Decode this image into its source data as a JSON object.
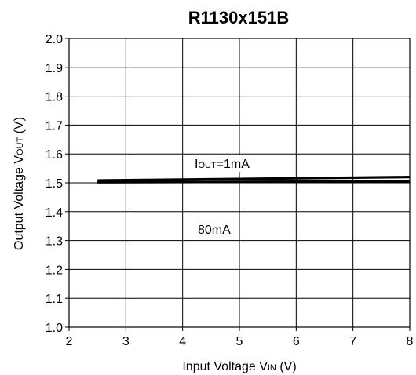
{
  "chart_data": {
    "type": "line",
    "title": "R1130x151B",
    "xlabel": {
      "main": "Input Voltage V",
      "sub": "IN",
      "unit": " (V)"
    },
    "ylabel": {
      "main": "Output Voltage V",
      "sub": "OUT",
      "unit": " (V)"
    },
    "xlim": [
      2,
      8
    ],
    "ylim": [
      1.0,
      2.0
    ],
    "x_ticks": [
      "2",
      "3",
      "4",
      "5",
      "6",
      "7",
      "8"
    ],
    "y_ticks": [
      "1.0",
      "1.1",
      "1.2",
      "1.3",
      "1.4",
      "1.5",
      "1.6",
      "1.7",
      "1.8",
      "1.9",
      "2.0"
    ],
    "grid": true,
    "series": [
      {
        "name": "IOUT=1mA",
        "x": [
          2.5,
          8
        ],
        "y": [
          1.508,
          1.52
        ]
      },
      {
        "name": "80mA",
        "x": [
          2.5,
          8
        ],
        "y": [
          1.502,
          1.505
        ]
      }
    ],
    "annotations": [
      {
        "pre": "I",
        "sub": "OUT",
        "post": "=1mA"
      },
      {
        "pre": "80mA",
        "sub": "",
        "post": ""
      }
    ]
  }
}
